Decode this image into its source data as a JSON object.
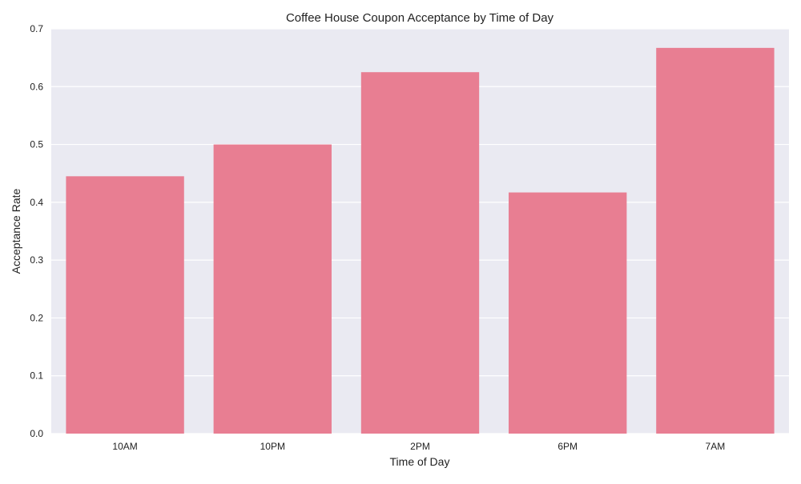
{
  "colors": {
    "plot_bg": "#eaeaf2",
    "grid": "#ffffff",
    "bar": "#e87e92",
    "text": "#222222"
  },
  "chart_data": {
    "type": "bar",
    "title": "Coffee House Coupon Acceptance by Time of Day",
    "xlabel": "Time of Day",
    "ylabel": "Acceptance Rate",
    "categories": [
      "10AM",
      "10PM",
      "2PM",
      "6PM",
      "7AM"
    ],
    "values": [
      0.445,
      0.5,
      0.625,
      0.417,
      0.667
    ],
    "ylim": [
      0,
      0.7
    ],
    "yticks": [
      "0.0",
      "0.1",
      "0.2",
      "0.3",
      "0.4",
      "0.5",
      "0.6",
      "0.7"
    ],
    "grid": true,
    "legend": "none"
  }
}
